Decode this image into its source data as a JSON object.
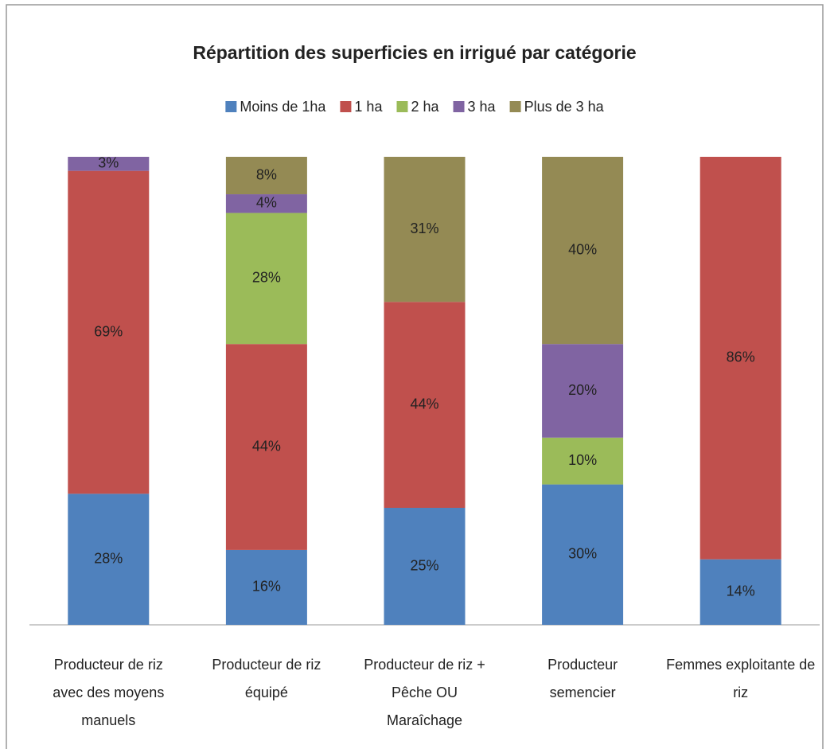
{
  "chart_data": {
    "type": "stacked_bar",
    "title": "Répartition des superficies en irrigué par catégorie",
    "categories": [
      "Producteur de riz avec des moyens manuels",
      "Producteur de riz équipé",
      "Producteur de riz + Pêche OU Maraîchage",
      "Producteur semencier",
      "Femmes exploitante de riz"
    ],
    "series": [
      {
        "name": "Moins  de 1ha",
        "color": "#4f81bd",
        "values": [
          28,
          16,
          25,
          30,
          14
        ],
        "value_labels": [
          "28%",
          "16%",
          "25%",
          "30%",
          "14%"
        ]
      },
      {
        "name": "1 ha",
        "color": "#c0504d",
        "values": [
          69,
          44,
          44,
          null,
          86
        ],
        "value_labels": [
          "69%",
          "44%",
          "44%",
          null,
          "86%"
        ]
      },
      {
        "name": "2 ha",
        "color": "#9bbb59",
        "values": [
          null,
          28,
          null,
          10,
          null
        ],
        "value_labels": [
          null,
          "28%",
          null,
          "10%",
          null
        ]
      },
      {
        "name": "3 ha",
        "color": "#8064a2",
        "values": [
          3,
          4,
          null,
          20,
          null
        ],
        "value_labels": [
          "3%",
          "4%",
          null,
          "20%",
          null
        ]
      },
      {
        "name": "Plus de 3 ha",
        "color": "#948a54",
        "values": [
          null,
          8,
          31,
          40,
          null
        ],
        "value_labels": [
          null,
          "8%",
          "31%",
          "40%",
          null
        ]
      }
    ],
    "ylim": [
      0,
      100
    ],
    "legend": "top"
  }
}
